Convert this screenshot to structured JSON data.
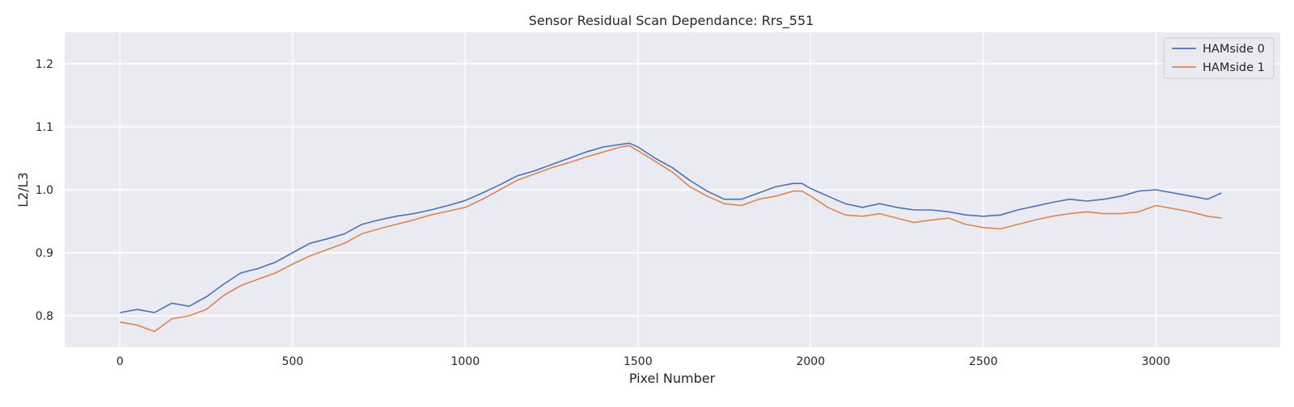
{
  "chart_data": {
    "type": "line",
    "title": "Sensor Residual Scan Dependance: Rrs_551",
    "xlabel": "Pixel Number",
    "ylabel": "L2/L3",
    "xlim": [
      -160,
      3360
    ],
    "ylim": [
      0.75,
      1.25
    ],
    "xticks": [
      0,
      500,
      1000,
      1500,
      2000,
      2500,
      3000
    ],
    "yticks": [
      0.8,
      0.9,
      1.0,
      1.1,
      1.2
    ],
    "xtick_labels": [
      "0",
      "500",
      "1000",
      "1500",
      "2000",
      "2500",
      "3000"
    ],
    "ytick_labels": [
      "0.8",
      "0.9",
      "1.0",
      "1.1",
      "1.2"
    ],
    "grid": true,
    "legend_position": "top-right",
    "series": [
      {
        "name": "HAMside 0",
        "color": "#4c72b0",
        "x": [
          0,
          50,
          100,
          150,
          200,
          250,
          300,
          350,
          400,
          450,
          500,
          550,
          600,
          650,
          700,
          750,
          800,
          850,
          900,
          950,
          1000,
          1050,
          1100,
          1150,
          1200,
          1250,
          1300,
          1350,
          1400,
          1450,
          1475,
          1500,
          1550,
          1600,
          1650,
          1700,
          1750,
          1800,
          1850,
          1900,
          1950,
          1975,
          2000,
          2050,
          2100,
          2150,
          2200,
          2250,
          2300,
          2350,
          2400,
          2450,
          2500,
          2550,
          2600,
          2650,
          2700,
          2750,
          2800,
          2850,
          2900,
          2950,
          3000,
          3050,
          3100,
          3150,
          3190
        ],
        "y": [
          0.805,
          0.81,
          0.805,
          0.82,
          0.815,
          0.83,
          0.85,
          0.868,
          0.875,
          0.885,
          0.9,
          0.915,
          0.922,
          0.93,
          0.945,
          0.952,
          0.958,
          0.962,
          0.968,
          0.975,
          0.983,
          0.995,
          1.008,
          1.022,
          1.03,
          1.04,
          1.05,
          1.06,
          1.068,
          1.072,
          1.074,
          1.068,
          1.05,
          1.035,
          1.015,
          0.998,
          0.985,
          0.985,
          0.995,
          1.005,
          1.01,
          1.01,
          1.002,
          0.99,
          0.978,
          0.972,
          0.978,
          0.972,
          0.968,
          0.968,
          0.965,
          0.96,
          0.958,
          0.96,
          0.968,
          0.974,
          0.98,
          0.985,
          0.982,
          0.985,
          0.99,
          0.998,
          1.0,
          0.995,
          0.99,
          0.985,
          0.995
        ]
      },
      {
        "name": "HAMside 1",
        "color": "#dd8452",
        "x": [
          0,
          50,
          100,
          150,
          200,
          250,
          300,
          350,
          400,
          450,
          500,
          550,
          600,
          650,
          700,
          750,
          800,
          850,
          900,
          950,
          1000,
          1050,
          1100,
          1150,
          1200,
          1250,
          1300,
          1350,
          1400,
          1450,
          1475,
          1500,
          1550,
          1600,
          1650,
          1700,
          1750,
          1800,
          1850,
          1900,
          1950,
          1975,
          2000,
          2050,
          2100,
          2150,
          2200,
          2250,
          2300,
          2350,
          2400,
          2450,
          2500,
          2550,
          2600,
          2650,
          2700,
          2750,
          2800,
          2850,
          2900,
          2950,
          3000,
          3050,
          3100,
          3150,
          3190
        ],
        "y": [
          0.79,
          0.785,
          0.775,
          0.795,
          0.8,
          0.81,
          0.832,
          0.848,
          0.858,
          0.868,
          0.882,
          0.895,
          0.905,
          0.915,
          0.93,
          0.938,
          0.945,
          0.952,
          0.96,
          0.966,
          0.972,
          0.985,
          1.0,
          1.015,
          1.025,
          1.035,
          1.043,
          1.052,
          1.06,
          1.068,
          1.07,
          1.062,
          1.045,
          1.028,
          1.005,
          0.99,
          0.978,
          0.975,
          0.985,
          0.99,
          0.998,
          0.998,
          0.99,
          0.972,
          0.96,
          0.958,
          0.962,
          0.955,
          0.948,
          0.952,
          0.955,
          0.945,
          0.94,
          0.938,
          0.945,
          0.952,
          0.958,
          0.962,
          0.965,
          0.962,
          0.962,
          0.965,
          0.975,
          0.97,
          0.965,
          0.958,
          0.955
        ]
      }
    ]
  }
}
